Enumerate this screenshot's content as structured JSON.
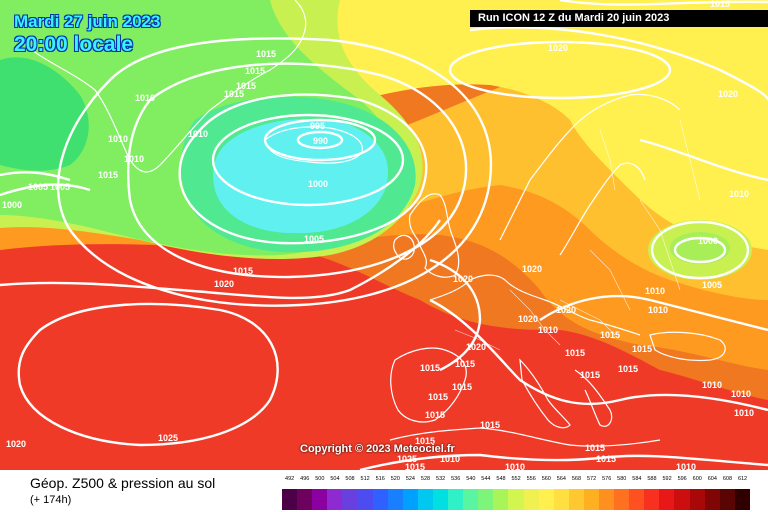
{
  "header": {
    "date": "Mardi 27 juin 2023",
    "time": "20:00 locale",
    "run": "Run ICON 12 Z du Mardi 20 juin 2023"
  },
  "copyright": "Copyright © 2023 Meteociel.fr",
  "legend": {
    "title": "Géop. Z500 & pression au sol",
    "lead": "(+ 174h)",
    "scale_labels": [
      "492",
      "496",
      "500",
      "504",
      "508",
      "512",
      "516",
      "520",
      "524",
      "528",
      "532",
      "536",
      "540",
      "544",
      "548",
      "552",
      "556",
      "560",
      "564",
      "568",
      "572",
      "576",
      "580",
      "584",
      "588",
      "592",
      "596",
      "600",
      "604",
      "608",
      "612"
    ],
    "scale_colors": [
      "#4b0048",
      "#6e005e",
      "#8b00a0",
      "#8e2bd0",
      "#6a3fe0",
      "#4c4cf0",
      "#3060ff",
      "#1a7fff",
      "#00a0ff",
      "#00c8f0",
      "#00e0e0",
      "#30f0c8",
      "#5af5a0",
      "#7df57a",
      "#a8f55a",
      "#d2f550",
      "#f0f050",
      "#fff050",
      "#ffe040",
      "#ffc830",
      "#ffb020",
      "#ff9020",
      "#ff7020",
      "#ff5020",
      "#f83020",
      "#e81818",
      "#cc0e0e",
      "#a80808",
      "#800606",
      "#5a0404",
      "#300000"
    ]
  },
  "map": {
    "colors": {
      "sea": "#f07820",
      "deep_red": "#f03a28",
      "orange": "#ff9a20",
      "gold": "#ffc030",
      "yellow": "#fff050",
      "lime": "#c8f050",
      "green": "#80ee60",
      "teal": "#50e890",
      "cyan": "#60f0f0",
      "isobar": "#ffffff",
      "coast": "#ffffff"
    },
    "isobar_labels": [
      {
        "text": "1010",
        "name": "label-1010-nw"
      },
      {
        "text": "1010",
        "name": "label-1010-greenland-1"
      },
      {
        "text": "1010",
        "name": "label-1010-greenland-2"
      },
      {
        "text": "1010",
        "name": "label-1010-greenland-3"
      },
      {
        "text": "1010",
        "name": "label-1010-iceland-w"
      },
      {
        "text": "1015",
        "name": "label-1015-iceland-n1"
      },
      {
        "text": "1015",
        "name": "label-1015-iceland-n2"
      },
      {
        "text": "1015",
        "name": "label-1015-iceland-n3"
      },
      {
        "text": "1015",
        "name": "label-1015-iceland-n4"
      },
      {
        "text": "1015",
        "name": "label-1015-greenland-s"
      },
      {
        "text": "1005",
        "name": "label-1005-w-1"
      },
      {
        "text": "1005",
        "name": "label-1005-w-2"
      },
      {
        "text": "1000",
        "name": "label-1000-w"
      },
      {
        "text": "995",
        "name": "label-995"
      },
      {
        "text": "990",
        "name": "label-990"
      },
      {
        "text": "1000",
        "name": "label-1000-low"
      },
      {
        "text": "1005",
        "name": "label-1005-low"
      },
      {
        "text": "1015",
        "name": "label-1015-atl"
      },
      {
        "text": "1020",
        "name": "label-1020-atl"
      },
      {
        "text": "1020",
        "name": "label-1020-north"
      },
      {
        "text": "1020",
        "name": "label-1020-scand"
      },
      {
        "text": "1010",
        "name": "label-1010-russia"
      },
      {
        "text": "1000",
        "name": "label-1000-russia"
      },
      {
        "text": "1005",
        "name": "label-1005-russia"
      },
      {
        "text": "1010",
        "name": "label-1010-ukr-1"
      },
      {
        "text": "1010",
        "name": "label-1010-ukr-2"
      },
      {
        "text": "1020",
        "name": "label-1020-biscay"
      },
      {
        "text": "1020",
        "name": "label-1020-uk"
      },
      {
        "text": "1020",
        "name": "label-1020-europe-1"
      },
      {
        "text": "1020",
        "name": "label-1020-europe-2"
      },
      {
        "text": "1010",
        "name": "label-1010-europe"
      },
      {
        "text": "1015",
        "name": "label-1015-europe-1"
      },
      {
        "text": "1015",
        "name": "label-1015-europe-2"
      },
      {
        "text": "1015",
        "name": "label-1015-europe-3"
      },
      {
        "text": "1015",
        "name": "label-1015-balkans"
      },
      {
        "text": "1015",
        "name": "label-1015-greece"
      },
      {
        "text": "1010",
        "name": "label-1010-turkey"
      },
      {
        "text": "1010",
        "name": "label-1010-east"
      },
      {
        "text": "1010",
        "name": "label-1010-se"
      },
      {
        "text": "1020",
        "name": "label-1020-france"
      },
      {
        "text": "1015",
        "name": "label-1015-iberia-1"
      },
      {
        "text": "1015",
        "name": "label-1015-iberia-2"
      },
      {
        "text": "1015",
        "name": "label-1015-iberia-3"
      },
      {
        "text": "1015",
        "name": "label-1015-iberia-4"
      },
      {
        "text": "1015",
        "name": "label-1015-med"
      },
      {
        "text": "1015",
        "name": "label-1015-italy"
      },
      {
        "text": "1015",
        "name": "label-1015-africa"
      },
      {
        "text": "1025",
        "name": "label-1025-africa"
      },
      {
        "text": "1010",
        "name": "label-1010-africa-1"
      },
      {
        "text": "1010",
        "name": "label-1010-africa-2"
      },
      {
        "text": "1015",
        "name": "label-1015-africa-2"
      },
      {
        "text": "1015",
        "name": "label-1015-africa-3"
      },
      {
        "text": "1025",
        "name": "label-1025-azores"
      },
      {
        "text": "1020",
        "name": "label-1020-sw"
      },
      {
        "text": "1015",
        "name": "label-1015-top"
      }
    ]
  }
}
